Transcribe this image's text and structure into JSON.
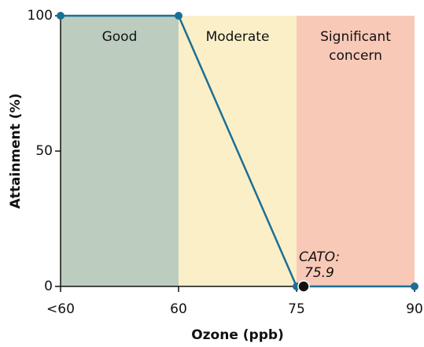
{
  "chart_data": {
    "type": "line",
    "x_label": "Ozone (ppb)",
    "y_label": "Attainment (%)",
    "xlim": [
      45,
      90
    ],
    "ylim": [
      0,
      100
    ],
    "xticks": [
      {
        "value": 45,
        "label": "<60"
      },
      60,
      75,
      90
    ],
    "yticks": [
      0,
      50,
      100
    ],
    "bands": [
      {
        "lines": [
          "Good"
        ],
        "from": 45,
        "to": 60,
        "color": "#bccdbf"
      },
      {
        "lines": [
          "Moderate"
        ],
        "from": 60,
        "to": 75,
        "color": "#fbefc8"
      },
      {
        "lines": [
          "Significant",
          "concern"
        ],
        "from": 75,
        "to": 90,
        "color": "#f9c9b8"
      }
    ],
    "x": [
      45,
      60,
      75,
      90
    ],
    "series": [
      {
        "color": "#1b6f96",
        "values": [
          100,
          100,
          0,
          0
        ]
      }
    ],
    "highlight": {
      "label": "CATO:",
      "x": 75.9,
      "y": 0,
      "color": "#111111"
    }
  }
}
